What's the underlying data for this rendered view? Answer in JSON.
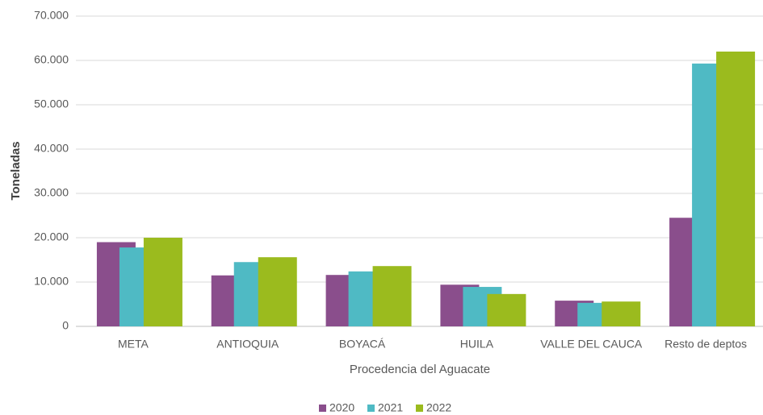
{
  "chart_data": {
    "type": "bar",
    "x_label": "Procedencia del Aguacate",
    "y_label": "Toneladas",
    "categories": [
      "META",
      "ANTIOQUIA",
      "BOYACÁ",
      "HUILA",
      "VALLE DEL CAUCA",
      "Resto de deptos"
    ],
    "series": [
      {
        "name": "2020",
        "color": "#8a4e8c",
        "values": [
          19000,
          11500,
          11600,
          9400,
          5800,
          24500
        ]
      },
      {
        "name": "2021",
        "color": "#4fbac4",
        "values": [
          17800,
          14500,
          12400,
          8900,
          5300,
          59300
        ]
      },
      {
        "name": "2022",
        "color": "#9bbb1e",
        "values": [
          20000,
          15600,
          13600,
          7300,
          5600,
          62000
        ]
      }
    ],
    "ylim": [
      0,
      70000
    ],
    "yticks": [
      0,
      {
        "value": 10000,
        "label": "10.000"
      },
      {
        "value": 20000,
        "label": "20.000"
      },
      {
        "value": 30000,
        "label": "30.000"
      },
      {
        "value": 40000,
        "label": "40.000"
      },
      {
        "value": 50000,
        "label": "50.000"
      },
      {
        "value": 60000,
        "label": "60.000"
      },
      {
        "value": 70000,
        "label": "70.000"
      }
    ],
    "grid": true,
    "legend": "bottom"
  }
}
